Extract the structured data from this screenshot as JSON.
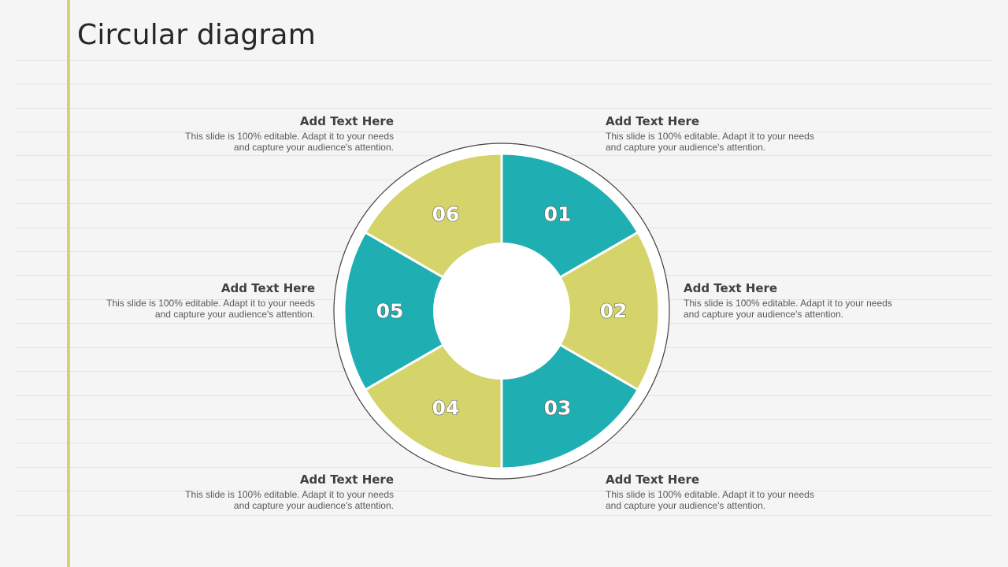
{
  "title": "Circular diagram",
  "colors": {
    "teal": "#1fafb3",
    "olive": "#d4d46a",
    "accent_bar": "#d4d46a"
  },
  "segments": [
    {
      "number": "01",
      "color": "teal"
    },
    {
      "number": "02",
      "color": "olive"
    },
    {
      "number": "03",
      "color": "teal"
    },
    {
      "number": "04",
      "color": "olive"
    },
    {
      "number": "05",
      "color": "teal"
    },
    {
      "number": "06",
      "color": "olive"
    }
  ],
  "text_boxes": [
    {
      "heading": "Add Text Here",
      "line1": "This slide is 100% editable. Adapt it to your needs",
      "line2": "and capture your audience's attention."
    },
    {
      "heading": "Add Text Here",
      "line1": "This slide is 100% editable. Adapt it to your needs",
      "line2": "and capture your audience's attention."
    },
    {
      "heading": "Add Text Here",
      "line1": "This slide is 100% editable. Adapt it to your needs",
      "line2": "and capture your audience's attention."
    },
    {
      "heading": "Add Text Here",
      "line1": "This slide is 100% editable. Adapt it to your needs",
      "line2": "and capture your audience's attention."
    },
    {
      "heading": "Add Text Here",
      "line1": "This slide is 100% editable. Adapt it to your needs",
      "line2": "and capture your audience's attention."
    },
    {
      "heading": "Add Text Here",
      "line1": "This slide is 100% editable. Adapt it to your needs",
      "line2": "and capture your audience's attention."
    }
  ]
}
